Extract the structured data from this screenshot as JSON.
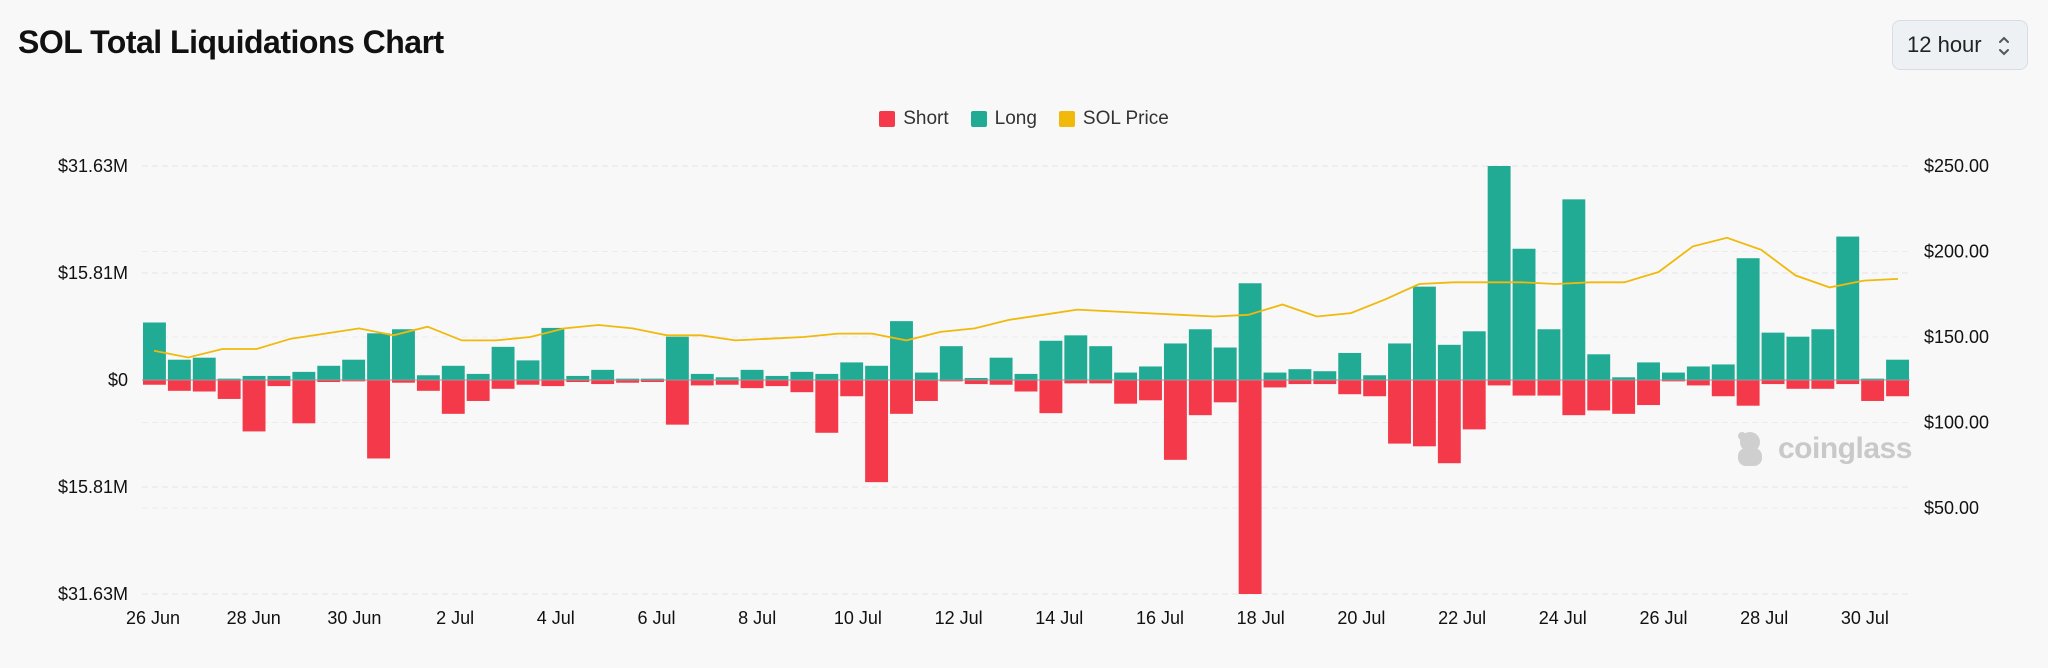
{
  "title": "SOL Total Liquidations Chart",
  "interval": {
    "value": "12 hour"
  },
  "legend": [
    {
      "label": "Short",
      "color": "#f43a4a"
    },
    {
      "label": "Long",
      "color": "#22ab94"
    },
    {
      "label": "SOL Price",
      "color": "#f0b90b"
    }
  ],
  "watermark": "coinglass",
  "chart_data": {
    "type": "bar",
    "left_axis_ticks": [
      "$31.63M",
      "$15.81M",
      "$0",
      "$15.81M",
      "$31.63M"
    ],
    "left_axis_range": [
      -31.63,
      31.63
    ],
    "right_axis_ticks": [
      "$250.00",
      "$200.00",
      "$150.00",
      "$100.00",
      "$50.00"
    ],
    "right_axis_range": [
      0,
      250
    ],
    "x_ticks": [
      "26 Jun",
      "28 Jun",
      "30 Jun",
      "2 Jul",
      "4 Jul",
      "6 Jul",
      "8 Jul",
      "10 Jul",
      "12 Jul",
      "14 Jul",
      "16 Jul",
      "18 Jul",
      "20 Jul",
      "22 Jul",
      "24 Jul",
      "26 Jul",
      "28 Jul",
      "30 Jul"
    ],
    "series": [
      {
        "name": "Long",
        "color": "#22ab94",
        "values": [
          8.5,
          3.0,
          3.3,
          0.2,
          0.6,
          0.6,
          1.2,
          2.1,
          3.0,
          6.9,
          7.5,
          0.7,
          2.1,
          0.9,
          4.9,
          2.9,
          7.7,
          0.6,
          1.5,
          0.2,
          0.2,
          6.4,
          0.9,
          0.4,
          1.5,
          0.6,
          1.2,
          0.9,
          2.6,
          2.1,
          8.7,
          1.1,
          5.0,
          0.3,
          3.3,
          0.9,
          5.8,
          6.6,
          5.0,
          1.1,
          2.0,
          5.4,
          7.5,
          4.8,
          14.3,
          1.1,
          1.6,
          1.3,
          4.0,
          0.7,
          5.4,
          13.8,
          5.2,
          7.2,
          31.63,
          19.4,
          7.5,
          26.7,
          3.8,
          0.4,
          2.6,
          1.1,
          2.0,
          2.3,
          18.0,
          7.0,
          6.4,
          7.5,
          21.2,
          0.2,
          3.0
        ]
      },
      {
        "name": "Short",
        "color": "#f43a4a",
        "values": [
          0.7,
          1.6,
          1.7,
          2.8,
          7.6,
          0.9,
          6.4,
          0.3,
          0.2,
          11.6,
          0.4,
          1.6,
          5.0,
          3.1,
          1.3,
          0.7,
          0.9,
          0.3,
          0.6,
          0.4,
          0.3,
          6.6,
          0.8,
          0.7,
          1.2,
          0.9,
          1.8,
          7.8,
          2.4,
          15.1,
          5.0,
          3.1,
          0.2,
          0.6,
          0.7,
          1.7,
          4.9,
          0.5,
          0.5,
          3.5,
          3.0,
          11.8,
          5.2,
          3.3,
          31.63,
          1.1,
          0.6,
          0.6,
          2.1,
          2.4,
          9.4,
          9.8,
          12.3,
          7.3,
          0.8,
          2.3,
          2.3,
          5.2,
          4.5,
          5.0,
          3.7,
          0.2,
          0.8,
          2.4,
          3.8,
          0.6,
          1.3,
          1.3,
          0.6,
          3.1,
          2.4
        ]
      },
      {
        "name": "SOL Price",
        "color": "#f0b90b",
        "values": [
          142,
          138,
          143,
          143,
          149,
          152,
          155,
          151,
          156,
          148,
          148,
          150,
          155,
          157,
          155,
          151,
          151,
          148,
          149,
          150,
          152,
          152,
          148,
          153,
          155,
          160,
          163,
          166,
          165,
          164,
          163,
          162,
          163,
          169,
          162,
          164,
          172,
          181,
          182,
          182,
          182,
          181,
          182,
          182,
          188,
          203,
          208,
          201,
          186,
          179,
          183,
          184
        ]
      }
    ]
  }
}
